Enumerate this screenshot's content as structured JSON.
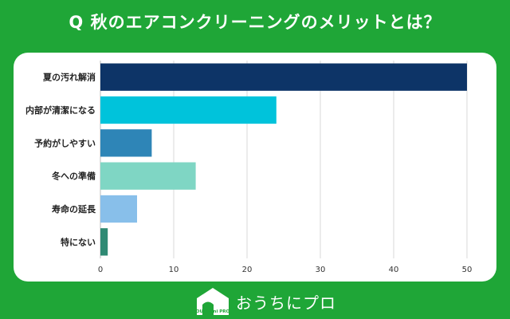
{
  "header": {
    "title": "Q 秋のエアコンクリーニングのメリットとは？"
  },
  "chart_data": {
    "type": "bar",
    "orientation": "horizontal",
    "title": "Q 秋のエアコンクリーニングのメリットとは？",
    "categories": [
      "夏の汚れ解消",
      "内部が清潔になる",
      "予約がしやすい",
      "冬への準備",
      "寿命の延長",
      "特にない"
    ],
    "values": [
      50,
      24,
      7,
      13,
      5,
      1
    ],
    "colors": [
      "#0d3467",
      "#00c3db",
      "#2e85b7",
      "#7fd6c4",
      "#88bfea",
      "#2f8a74"
    ],
    "xlim": [
      0,
      50
    ],
    "xticks": [
      "0",
      "10",
      "20",
      "30",
      "40",
      "50"
    ],
    "xlabel": "",
    "ylabel": "",
    "grid": true
  },
  "footer": {
    "logo_icon": "house-logo-icon",
    "logo_mark_text": "OUCHI ni PRO",
    "brand_name": "おうちにプロ"
  },
  "colors": {
    "background": "#1fa637",
    "card": "#ffffff"
  }
}
